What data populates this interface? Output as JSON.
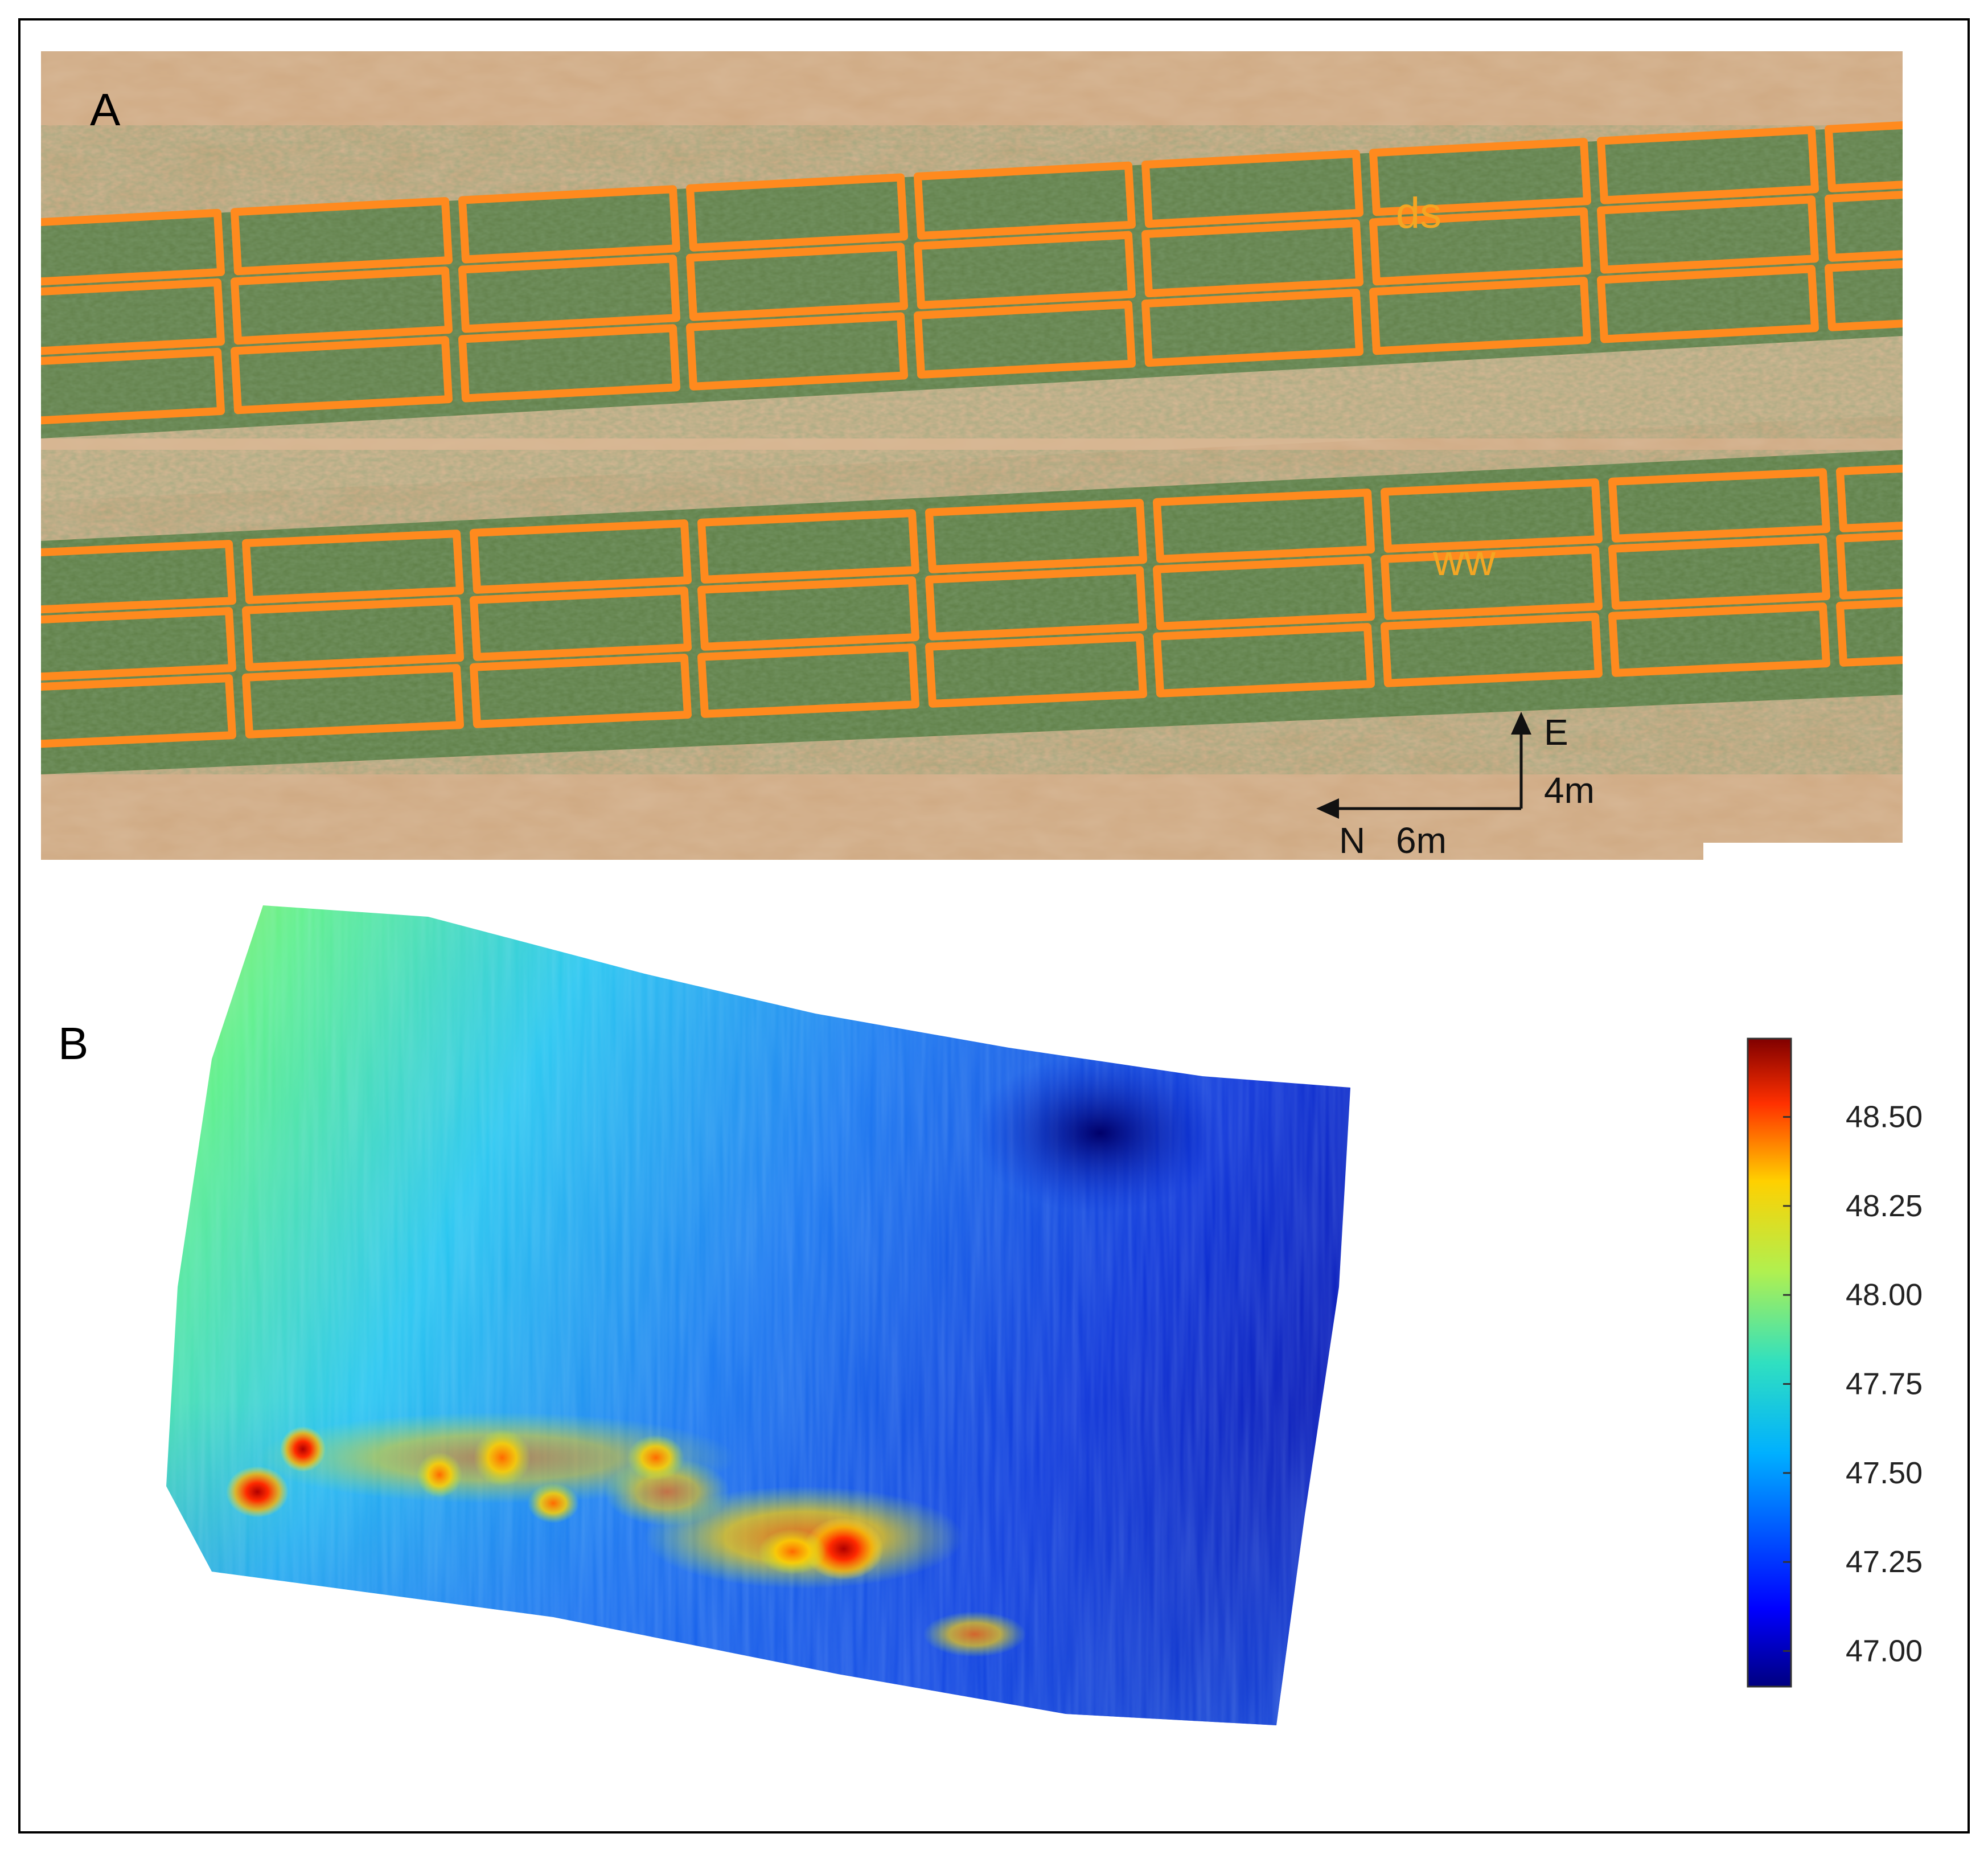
{
  "panel_a": {
    "letter": "A",
    "labels": {
      "dry": "ds",
      "wet": "ww"
    },
    "compass": {
      "east": "E",
      "north": "N",
      "scale_vertical": "4m",
      "scale_horizontal": "6m"
    },
    "colors": {
      "soil": "#c9a47e",
      "plot_outline": "#ff8a1e",
      "vegetation": "#5d7d45",
      "label": "#f5a623"
    }
  },
  "panel_b": {
    "letter": "B",
    "colorbar": {
      "min": 46.9,
      "max": 48.72,
      "ticks": [
        "48.50",
        "48.25",
        "48.00",
        "47.75",
        "47.50",
        "47.25",
        "47.00"
      ],
      "colormap": "jet"
    }
  }
}
